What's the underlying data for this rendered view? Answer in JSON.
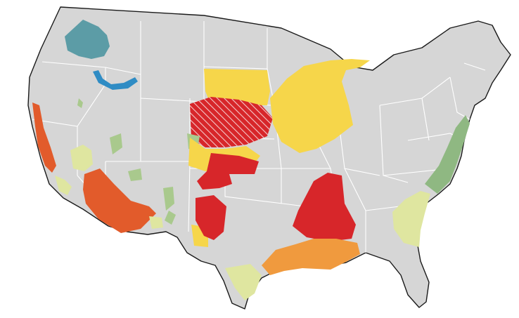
{
  "map": {
    "base_fill": "#d6d6d6",
    "outline_color": "#1a1a1a",
    "state_line_color": "#ffffff",
    "hatch_color": "#ffffff"
  },
  "legend_palette": {
    "teal": "#5c9ca6",
    "blue": "#2f8cc4",
    "light_green": "#a9c98d",
    "green": "#8fb882",
    "pale_yellow": "#dfe6a0",
    "yellow": "#f6d64a",
    "orange": "#f09a3e",
    "dark_orange": "#e25b2b",
    "red": "#d7262a"
  },
  "regions": [
    {
      "name": "pacific-northwest-teal",
      "color_key": "teal"
    },
    {
      "name": "snake-river-plain-blue",
      "color_key": "blue"
    },
    {
      "name": "california-central-valley",
      "color_key": "dark_orange"
    },
    {
      "name": "arizona-desert",
      "color_key": "dark_orange"
    },
    {
      "name": "great-basin-patch",
      "color_key": "pale_yellow"
    },
    {
      "name": "southern-california-patch",
      "color_key": "pale_yellow"
    },
    {
      "name": "northern-plains-yellow",
      "color_key": "yellow"
    },
    {
      "name": "central-plains-red-hatched",
      "color_key": "red"
    },
    {
      "name": "southern-high-plains-red",
      "color_key": "red"
    },
    {
      "name": "west-texas-red",
      "color_key": "red"
    },
    {
      "name": "mississippi-embayment-red",
      "color_key": "red"
    },
    {
      "name": "upper-midwest-yellow",
      "color_key": "yellow"
    },
    {
      "name": "gulf-coast-orange",
      "color_key": "orange"
    },
    {
      "name": "texas-coastal-pale",
      "color_key": "pale_yellow"
    },
    {
      "name": "southeast-coastal-plain-pale",
      "color_key": "pale_yellow"
    },
    {
      "name": "mid-atlantic-coastal-green",
      "color_key": "green"
    },
    {
      "name": "rocky-mountain-basins-green",
      "color_key": "light_green"
    },
    {
      "name": "new-mexico-yellow",
      "color_key": "yellow"
    }
  ]
}
